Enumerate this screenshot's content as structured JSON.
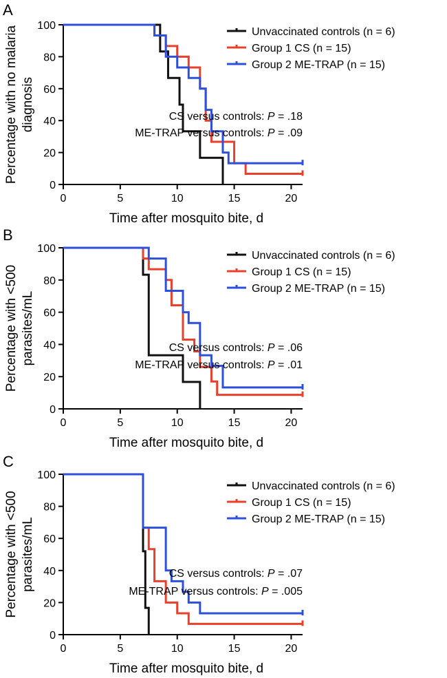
{
  "chart_data": [
    {
      "type": "line",
      "panel_letter": "A",
      "ylabel_lines": [
        "Percentage with no malaria",
        "diagnosis"
      ],
      "xlabel": "Time after mosquito bite, d",
      "xlim": [
        0,
        21
      ],
      "ylim": [
        0,
        100
      ],
      "xticks": [
        0,
        5,
        10,
        15,
        20
      ],
      "yticks": [
        0,
        20,
        40,
        60,
        80,
        100
      ],
      "legend_position": "top-right",
      "series": [
        {
          "name": "Unvaccinated controls (n = 6)",
          "color": "#111111",
          "x": [
            0,
            8.5,
            9.2,
            10.2,
            10.5,
            12,
            14
          ],
          "y": [
            100,
            83.3,
            66.7,
            50,
            33.3,
            16.7,
            0
          ]
        },
        {
          "name": "Group 1 CS (n = 15)",
          "color": "#e8402a",
          "x": [
            0,
            8,
            9,
            10,
            11,
            12,
            12.5,
            13,
            15,
            16,
            21
          ],
          "y": [
            100,
            93.3,
            86.7,
            80,
            73.3,
            60,
            40,
            26.7,
            13.3,
            6.7,
            6.7
          ],
          "censored_x": [
            21
          ]
        },
        {
          "name": "Group 2 ME-TRAP (n = 15)",
          "color": "#2c4fdc",
          "x": [
            0,
            8,
            9,
            10,
            11,
            12,
            12.5,
            13,
            14,
            14.5,
            21
          ],
          "y": [
            100,
            93.3,
            80,
            73.3,
            66.7,
            60,
            46.7,
            33.3,
            20,
            13.3,
            13.3
          ],
          "censored_x": [
            21
          ]
        }
      ],
      "annotations": [
        {
          "label": "CS versus controls: ",
          "p_label": "P",
          "p_value": " = .18"
        },
        {
          "label": "ME-TRAP versus controls: ",
          "p_label": "P",
          "p_value": " = .09"
        }
      ]
    },
    {
      "type": "line",
      "panel_letter": "B",
      "ylabel_lines": [
        "Percentage with <500",
        "parasites/mL"
      ],
      "xlabel": "Time after mosquito bite, d",
      "xlim": [
        0,
        21
      ],
      "ylim": [
        0,
        100
      ],
      "xticks": [
        0,
        5,
        10,
        15,
        20
      ],
      "yticks": [
        0,
        20,
        40,
        60,
        80,
        100
      ],
      "legend_position": "top-right",
      "series": [
        {
          "name": "Unvaccinated controls (n = 6)",
          "color": "#111111",
          "x": [
            0,
            7,
            7.5,
            10.5,
            12
          ],
          "y": [
            100,
            83.3,
            33.3,
            16.7,
            0
          ]
        },
        {
          "name": "Group 1 CS (n = 15)",
          "color": "#e8402a",
          "x": [
            0,
            7,
            7.5,
            9,
            9.5,
            10.5,
            11.5,
            12,
            13,
            13.5,
            21
          ],
          "y": [
            100,
            93.3,
            86.7,
            80,
            64.3,
            43,
            35.7,
            26,
            17,
            8.7,
            8.7
          ],
          "censored_x": [
            21
          ]
        },
        {
          "name": "Group 2 ME-TRAP (n = 15)",
          "color": "#2c4fdc",
          "x": [
            0,
            7.5,
            9,
            10.5,
            11,
            12,
            13,
            14,
            21
          ],
          "y": [
            100,
            93.3,
            73.3,
            60,
            53.3,
            33.3,
            26.7,
            13.3,
            13.3
          ],
          "censored_x": [
            21
          ]
        }
      ],
      "annotations": [
        {
          "label": "CS versus controls: ",
          "p_label": "P",
          "p_value": " = .06"
        },
        {
          "label": "ME-TRAP versus controls: ",
          "p_label": "P",
          "p_value": " = .01"
        }
      ]
    },
    {
      "type": "line",
      "panel_letter": "C",
      "ylabel_lines": [
        "Percentage with <500",
        "parasites/mL"
      ],
      "xlabel": "Time after mosquito bite, d",
      "xlim": [
        0,
        21
      ],
      "ylim": [
        0,
        100
      ],
      "xticks": [
        0,
        5,
        10,
        15,
        20
      ],
      "yticks": [
        0,
        20,
        40,
        60,
        80,
        100
      ],
      "legend_position": "top-right",
      "series": [
        {
          "name": "Unvaccinated controls (n = 6)",
          "color": "#111111",
          "x": [
            0,
            7,
            7.2,
            7.5
          ],
          "y": [
            100,
            52,
            16.7,
            0
          ]
        },
        {
          "name": "Group 1 CS (n = 15)",
          "color": "#e8402a",
          "x": [
            0,
            7,
            7.5,
            8,
            9,
            10,
            11,
            21
          ],
          "y": [
            100,
            66.7,
            53.3,
            33.3,
            20,
            13.3,
            6.7,
            6.7
          ],
          "censored_x": [
            21
          ]
        },
        {
          "name": "Group 2 ME-TRAP (n = 15)",
          "color": "#2c4fdc",
          "x": [
            0,
            7,
            9,
            9.5,
            10.5,
            11,
            12,
            21
          ],
          "y": [
            100,
            66.7,
            40,
            33.3,
            26.7,
            20,
            13.3,
            13.3
          ],
          "censored_x": [
            21
          ]
        }
      ],
      "annotations": [
        {
          "label": "CS versus controls: ",
          "p_label": "P",
          "p_value": " = .07"
        },
        {
          "label": "ME-TRAP versus controls: ",
          "p_label": "P",
          "p_value": " = .005"
        }
      ]
    }
  ]
}
